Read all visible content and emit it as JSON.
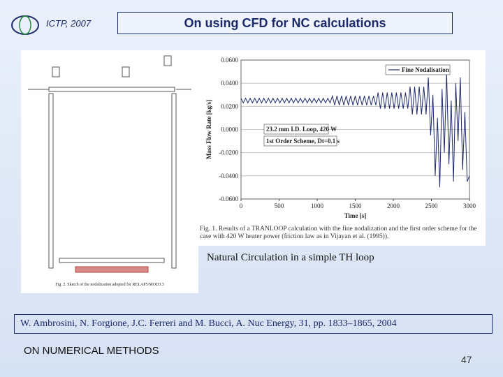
{
  "header": {
    "event": "ICTP, 2007",
    "title": "On using CFD for NC calculations"
  },
  "diagram": {
    "caption": "Fig. 2. Sketch of the nodalization adopted for RELAP5/MOD3.3"
  },
  "chart_data": {
    "type": "line",
    "xlabel": "Time [s]",
    "ylabel": "Mass Flow Rate [kg/s]",
    "annotations": [
      "23.2 mm I.D. Loop, 420 W",
      "1st Order Scheme, Dt=0.1 s"
    ],
    "caption": "Fig. 1. Results of a TRANLOOP calculation with the fine nodalization and the first order scheme for the case with 420 W heater power (friction law as in Vijayan et al. (1995)).",
    "xlim": [
      0,
      3000
    ],
    "xticks": [
      0,
      500,
      1000,
      1500,
      2000,
      2500,
      3000
    ],
    "ylim": [
      -0.06,
      0.06
    ],
    "yticks": [
      {
        "value": 0.06,
        "label": "0.0600"
      },
      {
        "value": 0.04,
        "label": "0.0400"
      },
      {
        "value": 0.02,
        "label": "0.0200"
      },
      {
        "value": 0,
        "label": "0.0000"
      },
      {
        "value": -0.02,
        "label": "-0.0200"
      },
      {
        "value": -0.04,
        "label": "-0.0400"
      },
      {
        "value": -0.06,
        "label": "-0.0600"
      }
    ],
    "grid": true,
    "legend": "upper right",
    "x": [
      0,
      30,
      60,
      90,
      120,
      150,
      180,
      210,
      240,
      270,
      300,
      330,
      360,
      390,
      420,
      450,
      480,
      510,
      540,
      570,
      600,
      630,
      660,
      690,
      720,
      750,
      780,
      810,
      840,
      870,
      900,
      930,
      960,
      990,
      1020,
      1050,
      1080,
      1110,
      1140,
      1170,
      1200,
      1230,
      1260,
      1290,
      1320,
      1350,
      1380,
      1410,
      1440,
      1470,
      1500,
      1530,
      1560,
      1590,
      1620,
      1650,
      1680,
      1710,
      1740,
      1770,
      1800,
      1830,
      1860,
      1890,
      1920,
      1950,
      1980,
      2010,
      2040,
      2070,
      2100,
      2130,
      2160,
      2190,
      2220,
      2250,
      2280,
      2310,
      2340,
      2370,
      2400,
      2430,
      2460,
      2490,
      2520,
      2550,
      2580,
      2610,
      2640,
      2670,
      2700,
      2730,
      2760,
      2790,
      2820,
      2850,
      2880,
      2910,
      2940,
      2970,
      3000
    ],
    "series": [
      {
        "name": "Fine Nodalisation",
        "color": "#1f2a6b",
        "values": [
          0.027,
          0.023,
          0.027,
          0.023,
          0.027,
          0.023,
          0.027,
          0.023,
          0.027,
          0.023,
          0.027,
          0.023,
          0.027,
          0.023,
          0.027,
          0.023,
          0.027,
          0.023,
          0.027,
          0.023,
          0.027,
          0.023,
          0.027,
          0.023,
          0.027,
          0.023,
          0.027,
          0.023,
          0.027,
          0.023,
          0.027,
          0.023,
          0.027,
          0.023,
          0.027,
          0.023,
          0.027,
          0.023,
          0.027,
          0.023,
          0.029,
          0.021,
          0.029,
          0.021,
          0.029,
          0.021,
          0.029,
          0.021,
          0.029,
          0.021,
          0.029,
          0.021,
          0.029,
          0.021,
          0.029,
          0.021,
          0.029,
          0.021,
          0.029,
          0.021,
          0.032,
          0.018,
          0.032,
          0.018,
          0.032,
          0.018,
          0.032,
          0.018,
          0.032,
          0.018,
          0.032,
          0.018,
          0.032,
          0.018,
          0.037,
          0.013,
          0.037,
          0.013,
          0.037,
          0.013,
          0.037,
          0.013,
          0.045,
          -0.005,
          0.03,
          -0.04,
          0.01,
          -0.05,
          0.035,
          -0.02,
          0.05,
          -0.03,
          0.025,
          -0.045,
          0.04,
          -0.01,
          0.045,
          -0.035,
          0.015,
          -0.045,
          -0.04
        ]
      }
    ]
  },
  "subtitle": "Natural Circulation in a simple TH loop",
  "citation": "W. Ambrosini, N. Forgione, J.C. Ferreri and M. Bucci, A. Nuc Energy, 31, pp. 1833–1865, 2004",
  "footer": {
    "section": "ON NUMERICAL METHODS",
    "page": "47"
  }
}
